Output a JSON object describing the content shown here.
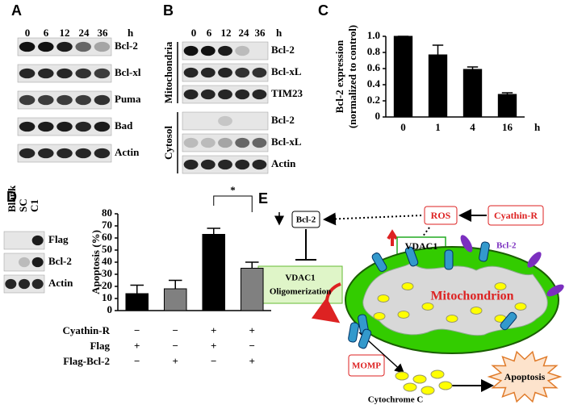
{
  "panel_a": {
    "letter": "A",
    "times": [
      "0",
      "6",
      "12",
      "24",
      "36"
    ],
    "unit": "h",
    "rows": [
      "Bcl-2",
      "Bcl-xl",
      "Puma",
      "Bad",
      "Actin"
    ]
  },
  "panel_b": {
    "letter": "B",
    "times": [
      "0",
      "6",
      "12",
      "24",
      "36"
    ],
    "unit": "h",
    "groups": [
      {
        "label": "Mitochondria",
        "rows": [
          "Bcl-2",
          "Bcl-xL",
          "TIM23"
        ]
      },
      {
        "label": "Cytosol",
        "rows": [
          "Bcl-2",
          "Bcl-xL",
          "Actin"
        ]
      }
    ]
  },
  "panel_d_blot": {
    "lanes": [
      "Blank",
      "SC",
      "C1"
    ],
    "rows": [
      "Flag",
      "Bcl-2",
      "Actin"
    ]
  },
  "chart_data": [
    {
      "type": "bar",
      "letter": "C",
      "ylabel": [
        "Bcl-2 expression",
        "(normalized to control)"
      ],
      "categories": [
        "0",
        "1",
        "4",
        "16"
      ],
      "xunit": "h",
      "values": [
        1.0,
        0.77,
        0.59,
        0.28
      ],
      "errors": [
        0,
        0.12,
        0.03,
        0.02
      ],
      "color": "#000000",
      "ylim": [
        0,
        1
      ],
      "yticks": [
        0,
        0.2,
        0.4,
        0.6,
        0.8,
        {
          "value": 1,
          "label": "1.0"
        }
      ]
    },
    {
      "type": "bar",
      "letter": "D",
      "ylabel": "Apoptosis (%)",
      "values": [
        14,
        18,
        63,
        35
      ],
      "errors": [
        7,
        7,
        5,
        5
      ],
      "colors": [
        "#000000",
        "#808080",
        "#000000",
        "#808080"
      ],
      "ylim": [
        0,
        80
      ],
      "yticks": [
        0,
        10,
        20,
        30,
        40,
        50,
        60,
        70,
        80
      ],
      "significance": "*",
      "conditions": [
        {
          "label": "Cyathin-R",
          "signs": [
            "−",
            "−",
            "+",
            "+"
          ]
        },
        {
          "label": "Flag",
          "signs": [
            "+",
            "−",
            "+",
            "−"
          ]
        },
        {
          "label": "Flag-Bcl-2",
          "signs": [
            "−",
            "+",
            "−",
            "+"
          ]
        }
      ]
    }
  ],
  "panel_e": {
    "letter": "E",
    "bcl2": "Bcl-2",
    "ros": "ROS",
    "cyathin": "Cyathin-R",
    "vdac1": "VDAC1",
    "oligo": [
      "VDAC1",
      "Oligomerization"
    ],
    "bcl2_mito": "Bcl-2",
    "mito": "Mitochondrion",
    "momp": "MOMP",
    "apoptosis": "Apoptosis",
    "cytochrome": "Cytochrome C"
  }
}
